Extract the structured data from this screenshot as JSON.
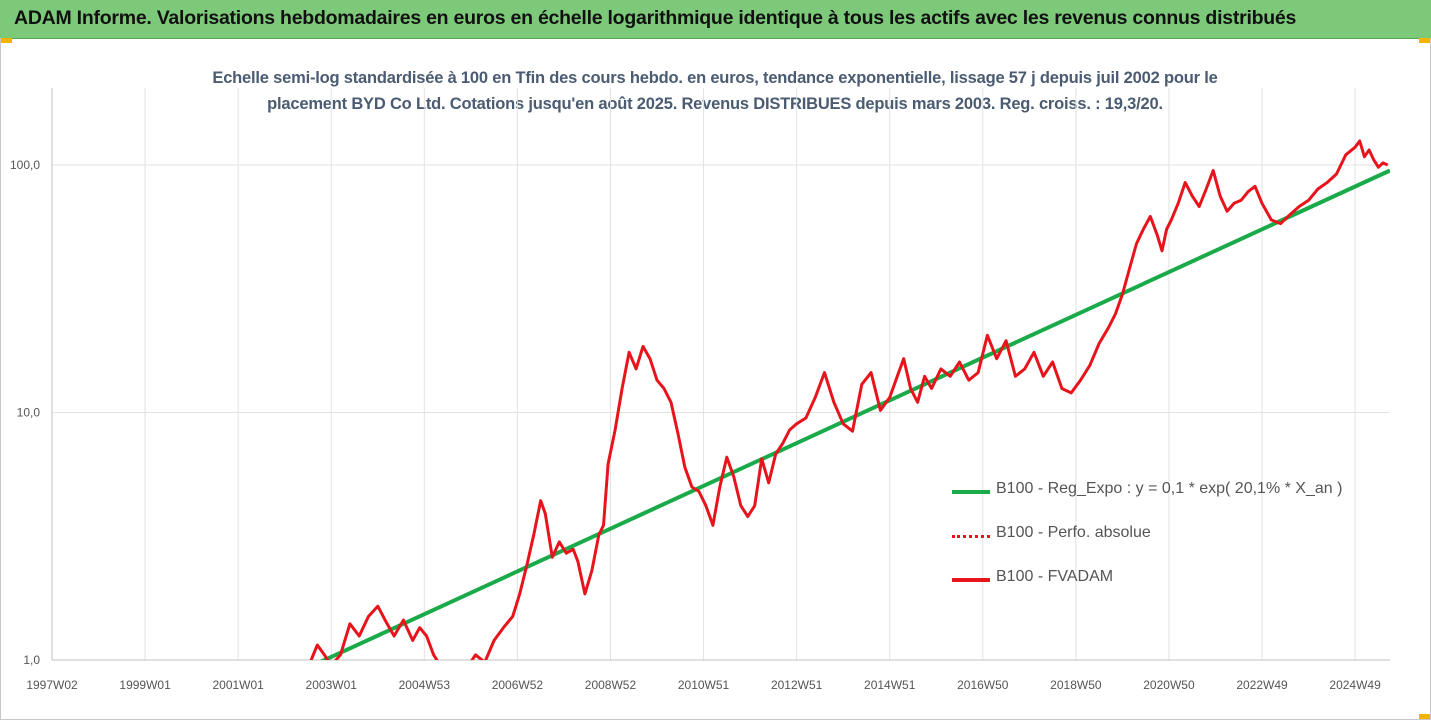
{
  "banner": {
    "title": "ADAM Informe. Valorisations hebdomadaires en euros en échelle logarithmique identique à tous les actifs avec les revenus connus distribués"
  },
  "colors": {
    "banner_bg": "#7dc97a",
    "trend": "#1aaa4a",
    "price": "#e8141b",
    "corner_accent": "#f2b400"
  },
  "chart_data": {
    "type": "line",
    "title_line1": "Echelle semi-log standardisée à 100 en Tfin des cours hebdo. en euros, tendance exponentielle, lissage 57 j depuis juil 2002 pour le",
    "title_line2": "placement BYD Co Ltd. Cotations jusqu'en août 2025. Revenus DISTRIBUES depuis mars 2003. Reg. croiss. : 19,3/20.",
    "y_scale": "log",
    "ylim": [
      1,
      200
    ],
    "y_ticks": [
      {
        "value": 1,
        "label": "1,0"
      },
      {
        "value": 10,
        "label": "10,0"
      },
      {
        "value": 100,
        "label": "100,0"
      }
    ],
    "xlim": [
      1997.0,
      2025.75
    ],
    "x_ticks": [
      {
        "value": 1997.0,
        "label": "1997W02"
      },
      {
        "value": 1999.0,
        "label": "1999W01"
      },
      {
        "value": 2001.0,
        "label": "2001W01"
      },
      {
        "value": 2003.0,
        "label": "2003W01"
      },
      {
        "value": 2005.0,
        "label": "2004W53"
      },
      {
        "value": 2007.0,
        "label": "2006W52"
      },
      {
        "value": 2009.0,
        "label": "2008W52"
      },
      {
        "value": 2011.0,
        "label": "2010W51"
      },
      {
        "value": 2013.0,
        "label": "2012W51"
      },
      {
        "value": 2015.0,
        "label": "2014W51"
      },
      {
        "value": 2017.0,
        "label": "2016W50"
      },
      {
        "value": 2019.0,
        "label": "2018W50"
      },
      {
        "value": 2021.0,
        "label": "2020W50"
      },
      {
        "value": 2023.0,
        "label": "2022W49"
      },
      {
        "value": 2025.0,
        "label": "2024W49"
      }
    ],
    "grid": {
      "vertical": true,
      "horizontal": true
    },
    "legend_position": "right-lower",
    "series": [
      {
        "name": "B100 - Reg_Expo : y = 0,1 * exp( 20,1% *  X_an )",
        "style": "solid-green",
        "x": [
          2002.6,
          2025.75
        ],
        "y": [
          0.95,
          95
        ]
      },
      {
        "name": "B100 - Perfo. absolue",
        "style": "dotted-red",
        "x": [],
        "y": []
      },
      {
        "name": "B100 - FVADAM",
        "style": "solid-red",
        "x": [
          2002.55,
          2002.7,
          2002.85,
          2003.0,
          2003.2,
          2003.4,
          2003.6,
          2003.8,
          2004.0,
          2004.2,
          2004.35,
          2004.55,
          2004.75,
          2004.9,
          2005.05,
          2005.2,
          2005.3,
          2005.5,
          2005.7,
          2005.9,
          2006.1,
          2006.3,
          2006.5,
          2006.7,
          2006.9,
          2007.05,
          2007.2,
          2007.35,
          2007.5,
          2007.6,
          2007.75,
          2007.9,
          2008.05,
          2008.2,
          2008.3,
          2008.45,
          2008.6,
          2008.75,
          2008.85,
          2008.95,
          2009.1,
          2009.25,
          2009.4,
          2009.55,
          2009.7,
          2009.85,
          2010.0,
          2010.15,
          2010.3,
          2010.45,
          2010.6,
          2010.75,
          2010.9,
          2011.05,
          2011.2,
          2011.35,
          2011.5,
          2011.65,
          2011.8,
          2011.95,
          2012.1,
          2012.25,
          2012.4,
          2012.55,
          2012.7,
          2012.85,
          2013.0,
          2013.2,
          2013.4,
          2013.6,
          2013.8,
          2014.0,
          2014.2,
          2014.4,
          2014.6,
          2014.8,
          2015.0,
          2015.15,
          2015.3,
          2015.45,
          2015.6,
          2015.75,
          2015.9,
          2016.1,
          2016.3,
          2016.5,
          2016.7,
          2016.9,
          2017.1,
          2017.3,
          2017.5,
          2017.7,
          2017.9,
          2018.1,
          2018.3,
          2018.5,
          2018.7,
          2018.9,
          2019.1,
          2019.3,
          2019.5,
          2019.7,
          2019.85,
          2020.0,
          2020.15,
          2020.3,
          2020.45,
          2020.6,
          2020.75,
          2020.85,
          2020.95,
          2021.05,
          2021.2,
          2021.35,
          2021.5,
          2021.65,
          2021.8,
          2021.95,
          2022.1,
          2022.25,
          2022.4,
          2022.55,
          2022.7,
          2022.85,
          2023.0,
          2023.2,
          2023.4,
          2023.6,
          2023.8,
          2024.0,
          2024.2,
          2024.4,
          2024.6,
          2024.8,
          2025.0,
          2025.1,
          2025.2,
          2025.3,
          2025.4,
          2025.5,
          2025.6,
          2025.7
        ],
        "y": [
          0.98,
          1.15,
          1.05,
          0.95,
          1.05,
          1.4,
          1.25,
          1.5,
          1.65,
          1.4,
          1.25,
          1.45,
          1.2,
          1.35,
          1.25,
          1.05,
          0.98,
          0.9,
          0.95,
          0.92,
          1.05,
          0.98,
          1.2,
          1.35,
          1.5,
          1.85,
          2.4,
          3.2,
          4.4,
          3.9,
          2.6,
          3.0,
          2.7,
          2.8,
          2.5,
          1.85,
          2.3,
          3.2,
          3.5,
          6.2,
          8.5,
          12.5,
          17.5,
          15.0,
          18.5,
          16.5,
          13.5,
          12.5,
          11.0,
          8.2,
          6.0,
          5.0,
          4.8,
          4.2,
          3.5,
          5.0,
          6.6,
          5.5,
          4.2,
          3.8,
          4.2,
          6.5,
          5.2,
          6.8,
          7.5,
          8.5,
          9.0,
          9.5,
          11.5,
          14.5,
          11.0,
          9.0,
          8.4,
          13.0,
          14.5,
          10.2,
          11.5,
          13.8,
          16.5,
          12.5,
          11.0,
          14.0,
          12.5,
          15.0,
          14.0,
          16.0,
          13.5,
          14.5,
          20.5,
          16.5,
          19.5,
          14.0,
          15.0,
          17.5,
          14.0,
          16.0,
          12.5,
          12.0,
          13.5,
          15.5,
          19.0,
          22.0,
          25.0,
          30.0,
          38.0,
          48.0,
          55.0,
          62.0,
          52.0,
          45.0,
          55.0,
          60.0,
          70.0,
          85.0,
          75.0,
          68.0,
          80.0,
          95.0,
          75.0,
          65.0,
          70.0,
          72.0,
          78.0,
          82.0,
          70.0,
          60.0,
          58.0,
          63.0,
          68.0,
          72.0,
          80.0,
          85.0,
          92.0,
          110.0,
          118.0,
          125.0,
          108.0,
          115.0,
          105.0,
          98.0,
          102.0,
          100.0
        ]
      }
    ]
  }
}
